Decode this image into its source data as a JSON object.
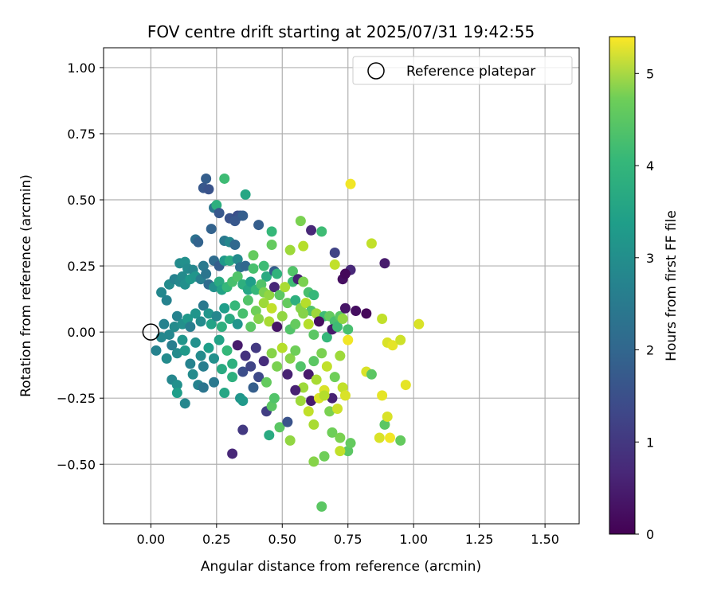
{
  "chart_data": {
    "type": "scatter",
    "title": "FOV centre drift starting at 2025/07/31 19:42:55",
    "xlabel": "Angular distance from reference (arcmin)",
    "ylabel": "Rotation from reference (arcmin)",
    "xlim": [
      -0.18,
      1.63
    ],
    "ylim": [
      -0.725,
      1.075
    ],
    "xticks": [
      0.0,
      0.25,
      0.5,
      0.75,
      1.0,
      1.25,
      1.5
    ],
    "xtick_labels": [
      "0.00",
      "0.25",
      "0.50",
      "0.75",
      "1.00",
      "1.25",
      "1.50"
    ],
    "yticks": [
      -0.5,
      -0.25,
      0.0,
      0.25,
      0.5,
      0.75,
      1.0
    ],
    "ytick_labels": [
      "−0.50",
      "−0.25",
      "0.00",
      "0.25",
      "0.50",
      "0.75",
      "1.00"
    ],
    "grid": true,
    "legend": {
      "position": "top-right",
      "entries": [
        "Reference platepar"
      ]
    },
    "reference_point": {
      "x": 0.0,
      "y": 0.0,
      "marker": "open-circle",
      "color": "#000000"
    },
    "colorbar": {
      "label": "Hours from first FF file",
      "colormap": "viridis",
      "range": [
        0,
        5.4
      ],
      "ticks": [
        0,
        1,
        2,
        3,
        4,
        5
      ],
      "tick_labels": [
        "0",
        "1",
        "2",
        "3",
        "4",
        "5"
      ]
    },
    "series": [
      {
        "columns": [
          "x",
          "y",
          "hours"
        ],
        "points": [
          [
            0.21,
            0.58,
            1.6
          ],
          [
            0.28,
            0.58,
            3.7
          ],
          [
            0.2,
            0.545,
            1.5
          ],
          [
            0.22,
            0.54,
            1.4
          ],
          [
            0.36,
            0.52,
            3.2
          ],
          [
            0.24,
            0.47,
            2.1
          ],
          [
            0.25,
            0.48,
            3.4
          ],
          [
            0.26,
            0.45,
            1.5
          ],
          [
            0.3,
            0.43,
            1.4
          ],
          [
            0.33,
            0.44,
            1.3
          ],
          [
            0.34,
            0.44,
            1.4
          ],
          [
            0.35,
            0.44,
            1.6
          ],
          [
            0.32,
            0.42,
            1.5
          ],
          [
            0.41,
            0.405,
            1.6
          ],
          [
            0.23,
            0.39,
            1.7
          ],
          [
            0.46,
            0.38,
            3.6
          ],
          [
            0.57,
            0.42,
            4.3
          ],
          [
            0.61,
            0.385,
            0.6
          ],
          [
            0.65,
            0.38,
            3.7
          ],
          [
            0.17,
            0.35,
            2.0
          ],
          [
            0.18,
            0.34,
            1.7
          ],
          [
            0.28,
            0.345,
            2.2
          ],
          [
            0.3,
            0.34,
            2.5
          ],
          [
            0.32,
            0.33,
            1.8
          ],
          [
            0.46,
            0.33,
            4.1
          ],
          [
            0.53,
            0.31,
            4.6
          ],
          [
            0.58,
            0.325,
            4.8
          ],
          [
            0.7,
            0.3,
            1.1
          ],
          [
            0.84,
            0.335,
            4.9
          ],
          [
            0.89,
            0.26,
            0.4
          ],
          [
            0.11,
            0.26,
            2.6
          ],
          [
            0.13,
            0.265,
            2.7
          ],
          [
            0.14,
            0.24,
            2.6
          ],
          [
            0.16,
            0.235,
            2.5
          ],
          [
            0.2,
            0.25,
            2.2
          ],
          [
            0.24,
            0.27,
            1.9
          ],
          [
            0.26,
            0.25,
            1.6
          ],
          [
            0.28,
            0.27,
            2.9
          ],
          [
            0.3,
            0.27,
            3.3
          ],
          [
            0.33,
            0.275,
            2.6
          ],
          [
            0.34,
            0.245,
            2.0
          ],
          [
            0.36,
            0.25,
            1.8
          ],
          [
            0.39,
            0.29,
            4.1
          ],
          [
            0.39,
            0.24,
            3.8
          ],
          [
            0.43,
            0.25,
            3.7
          ],
          [
            0.44,
            0.21,
            3.3
          ],
          [
            0.47,
            0.23,
            1.6
          ],
          [
            0.48,
            0.22,
            3.5
          ],
          [
            0.54,
            0.23,
            3.9
          ],
          [
            0.54,
            0.19,
            3.7
          ],
          [
            0.56,
            0.2,
            0.5
          ],
          [
            0.58,
            0.19,
            4.3
          ],
          [
            0.6,
            0.15,
            3.8
          ],
          [
            0.62,
            0.14,
            3.6
          ],
          [
            0.7,
            0.255,
            4.9
          ],
          [
            0.73,
            0.2,
            0.2
          ],
          [
            0.76,
            0.235,
            0.6
          ],
          [
            0.74,
            0.22,
            0.1
          ],
          [
            0.06,
            0.12,
            2.4
          ],
          [
            0.04,
            0.15,
            2.5
          ],
          [
            0.07,
            0.18,
            2.6
          ],
          [
            0.09,
            0.2,
            2.4
          ],
          [
            0.11,
            0.19,
            2.5
          ],
          [
            0.12,
            0.21,
            2.6
          ],
          [
            0.13,
            0.18,
            2.7
          ],
          [
            0.15,
            0.2,
            2.9
          ],
          [
            0.17,
            0.21,
            2.8
          ],
          [
            0.19,
            0.2,
            2.3
          ],
          [
            0.21,
            0.22,
            2.1
          ],
          [
            0.22,
            0.18,
            1.9
          ],
          [
            0.24,
            0.17,
            2.7
          ],
          [
            0.26,
            0.19,
            3.3
          ],
          [
            0.27,
            0.16,
            3.1
          ],
          [
            0.29,
            0.17,
            3.6
          ],
          [
            0.31,
            0.19,
            3.8
          ],
          [
            0.33,
            0.21,
            3.9
          ],
          [
            0.35,
            0.18,
            3.4
          ],
          [
            0.37,
            0.16,
            3.2
          ],
          [
            0.38,
            0.19,
            3.0
          ],
          [
            0.4,
            0.16,
            3.6
          ],
          [
            0.42,
            0.18,
            3.9
          ],
          [
            0.43,
            0.15,
            4.3
          ],
          [
            0.45,
            0.14,
            4.5
          ],
          [
            0.47,
            0.17,
            0.6
          ],
          [
            0.49,
            0.14,
            4.0
          ],
          [
            0.51,
            0.17,
            4.7
          ],
          [
            0.52,
            0.11,
            4.1
          ],
          [
            0.55,
            0.12,
            3.4
          ],
          [
            0.57,
            0.09,
            4.4
          ],
          [
            0.59,
            0.11,
            4.8
          ],
          [
            0.61,
            0.08,
            3.9
          ],
          [
            0.63,
            0.07,
            4.6
          ],
          [
            0.66,
            0.06,
            3.7
          ],
          [
            0.68,
            0.06,
            4.1
          ],
          [
            0.7,
            0.04,
            3.8
          ],
          [
            0.72,
            0.06,
            4.0
          ],
          [
            0.74,
            0.09,
            0.3
          ],
          [
            0.75,
            0.01,
            3.8
          ],
          [
            0.78,
            0.08,
            0.2
          ],
          [
            0.82,
            0.07,
            0.1
          ],
          [
            0.88,
            0.05,
            4.9
          ],
          [
            1.02,
            0.03,
            5.1
          ],
          [
            0.05,
            0.03,
            2.4
          ],
          [
            0.07,
            -0.01,
            2.5
          ],
          [
            0.09,
            0.02,
            2.6
          ],
          [
            0.1,
            0.06,
            2.4
          ],
          [
            0.12,
            0.03,
            2.7
          ],
          [
            0.14,
            0.05,
            2.9
          ],
          [
            0.15,
            0.02,
            2.3
          ],
          [
            0.17,
            0.07,
            2.8
          ],
          [
            0.19,
            0.04,
            2.6
          ],
          [
            0.2,
            0.1,
            2.2
          ],
          [
            0.22,
            0.07,
            2.8
          ],
          [
            0.23,
            0.03,
            3.1
          ],
          [
            0.25,
            0.06,
            2.5
          ],
          [
            0.27,
            0.02,
            3.4
          ],
          [
            0.28,
            0.09,
            3.0
          ],
          [
            0.3,
            0.05,
            3.3
          ],
          [
            0.32,
            0.1,
            3.6
          ],
          [
            0.33,
            0.03,
            2.8
          ],
          [
            0.35,
            0.07,
            3.8
          ],
          [
            0.37,
            0.12,
            3.9
          ],
          [
            0.38,
            0.02,
            4.0
          ],
          [
            0.4,
            0.08,
            4.2
          ],
          [
            0.41,
            0.05,
            4.4
          ],
          [
            0.43,
            0.11,
            4.6
          ],
          [
            0.45,
            0.04,
            4.7
          ],
          [
            0.46,
            0.09,
            4.9
          ],
          [
            0.48,
            0.02,
            0.3
          ],
          [
            0.5,
            0.06,
            4.5
          ],
          [
            0.53,
            0.01,
            3.9
          ],
          [
            0.55,
            0.03,
            4.1
          ],
          [
            0.58,
            0.07,
            4.4
          ],
          [
            0.6,
            0.03,
            4.8
          ],
          [
            0.62,
            -0.01,
            4.0
          ],
          [
            0.64,
            0.04,
            0.2
          ],
          [
            0.67,
            -0.02,
            3.6
          ],
          [
            0.69,
            0.01,
            0.4
          ],
          [
            0.71,
            0.02,
            3.7
          ],
          [
            0.73,
            0.05,
            4.5
          ],
          [
            0.02,
            -0.07,
            2.4
          ],
          [
            0.04,
            -0.02,
            2.5
          ],
          [
            0.06,
            -0.1,
            2.6
          ],
          [
            0.08,
            -0.05,
            2.3
          ],
          [
            0.1,
            -0.08,
            2.6
          ],
          [
            0.12,
            -0.03,
            2.8
          ],
          [
            0.13,
            -0.07,
            2.9
          ],
          [
            0.15,
            -0.12,
            2.4
          ],
          [
            0.17,
            -0.04,
            2.7
          ],
          [
            0.19,
            -0.09,
            2.6
          ],
          [
            0.2,
            -0.13,
            2.3
          ],
          [
            0.22,
            -0.06,
            3.0
          ],
          [
            0.24,
            -0.1,
            2.7
          ],
          [
            0.26,
            -0.03,
            3.1
          ],
          [
            0.27,
            -0.14,
            3.3
          ],
          [
            0.29,
            -0.07,
            3.6
          ],
          [
            0.31,
            -0.12,
            3.4
          ],
          [
            0.33,
            -0.05,
            0.4
          ],
          [
            0.35,
            -0.15,
            1.3
          ],
          [
            0.36,
            -0.09,
            0.8
          ],
          [
            0.38,
            -0.13,
            1.1
          ],
          [
            0.4,
            -0.06,
            0.9
          ],
          [
            0.41,
            -0.17,
            1.2
          ],
          [
            0.43,
            -0.11,
            0.7
          ],
          [
            0.44,
            -0.19,
            4.1
          ],
          [
            0.46,
            -0.08,
            4.4
          ],
          [
            0.48,
            -0.13,
            4.3
          ],
          [
            0.5,
            -0.06,
            4.8
          ],
          [
            0.52,
            -0.16,
            0.5
          ],
          [
            0.53,
            -0.1,
            4.4
          ],
          [
            0.55,
            -0.07,
            4.2
          ],
          [
            0.57,
            -0.13,
            3.9
          ],
          [
            0.58,
            -0.21,
            4.6
          ],
          [
            0.6,
            -0.16,
            0.4
          ],
          [
            0.62,
            -0.11,
            4.0
          ],
          [
            0.63,
            -0.18,
            4.7
          ],
          [
            0.65,
            -0.08,
            4.3
          ],
          [
            0.66,
            -0.22,
            5.1
          ],
          [
            0.67,
            -0.13,
            4.9
          ],
          [
            0.69,
            -0.25,
            0.5
          ],
          [
            0.7,
            -0.17,
            4.2
          ],
          [
            0.72,
            -0.09,
            4.6
          ],
          [
            0.73,
            -0.21,
            4.9
          ],
          [
            0.75,
            -0.03,
            5.3
          ],
          [
            0.82,
            -0.15,
            5.1
          ],
          [
            0.84,
            -0.16,
            4.0
          ],
          [
            0.9,
            -0.04,
            5.1
          ],
          [
            0.92,
            -0.05,
            5.2
          ],
          [
            0.95,
            -0.03,
            5.0
          ],
          [
            0.97,
            -0.2,
            5.2
          ],
          [
            0.08,
            -0.18,
            2.5
          ],
          [
            0.1,
            -0.2,
            2.7
          ],
          [
            0.1,
            -0.23,
            3.0
          ],
          [
            0.13,
            -0.27,
            2.5
          ],
          [
            0.16,
            -0.16,
            2.6
          ],
          [
            0.18,
            -0.2,
            2.4
          ],
          [
            0.2,
            -0.21,
            2.1
          ],
          [
            0.24,
            -0.19,
            2.2
          ],
          [
            0.28,
            -0.23,
            3.2
          ],
          [
            0.31,
            -0.17,
            3.4
          ],
          [
            0.34,
            -0.25,
            2.8
          ],
          [
            0.35,
            -0.26,
            2.9
          ],
          [
            0.39,
            -0.21,
            1.6
          ],
          [
            0.44,
            -0.3,
            1.0
          ],
          [
            0.46,
            -0.28,
            4.0
          ],
          [
            0.45,
            -0.39,
            3.3
          ],
          [
            0.47,
            -0.25,
            3.9
          ],
          [
            0.49,
            -0.36,
            4.0
          ],
          [
            0.52,
            -0.34,
            1.4
          ],
          [
            0.53,
            -0.41,
            4.5
          ],
          [
            0.55,
            -0.22,
            0.5
          ],
          [
            0.57,
            -0.26,
            4.6
          ],
          [
            0.6,
            -0.3,
            4.9
          ],
          [
            0.61,
            -0.26,
            0.4
          ],
          [
            0.62,
            -0.35,
            4.7
          ],
          [
            0.64,
            -0.25,
            5.1
          ],
          [
            0.66,
            -0.24,
            4.8
          ],
          [
            0.68,
            -0.3,
            4.3
          ],
          [
            0.69,
            -0.38,
            4.2
          ],
          [
            0.71,
            -0.29,
            5.0
          ],
          [
            0.72,
            -0.4,
            4.3
          ],
          [
            0.74,
            -0.24,
            5.1
          ],
          [
            0.75,
            -0.45,
            4.0
          ],
          [
            0.76,
            -0.42,
            4.1
          ],
          [
            0.87,
            -0.4,
            5.1
          ],
          [
            0.89,
            -0.35,
            4.0
          ],
          [
            0.9,
            -0.32,
            5.1
          ],
          [
            0.91,
            -0.4,
            5.3
          ],
          [
            0.95,
            -0.41,
            4.1
          ],
          [
            0.88,
            -0.24,
            5.2
          ],
          [
            0.31,
            -0.46,
            0.6
          ],
          [
            0.35,
            -0.37,
            0.9
          ],
          [
            0.62,
            -0.49,
            4.4
          ],
          [
            0.66,
            -0.47,
            4.2
          ],
          [
            0.72,
            -0.45,
            4.9
          ],
          [
            0.65,
            -0.66,
            4.0
          ],
          [
            0.76,
            0.56,
            5.3
          ]
        ]
      }
    ]
  }
}
